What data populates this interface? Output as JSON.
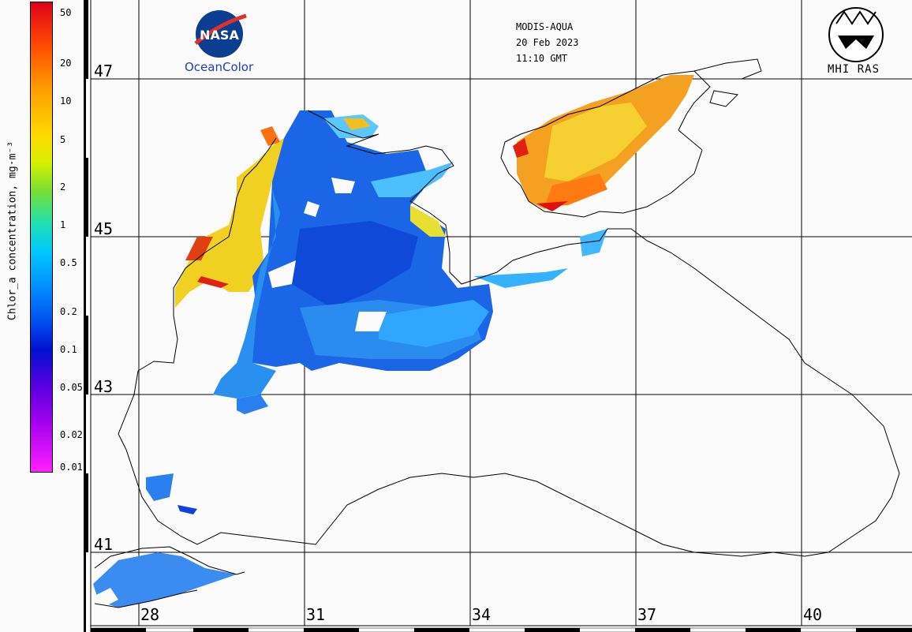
{
  "colorbar": {
    "title": "Chlor_a concentration, mg·m⁻³",
    "labels": [
      "50",
      "20",
      "10",
      "5",
      "2",
      "1",
      "0.5",
      "0.2",
      "0.1",
      "0.05",
      "0.02",
      "0.01"
    ]
  },
  "grid": {
    "latitudes": [
      "47",
      "45",
      "43",
      "41"
    ],
    "longitudes": [
      "28",
      "31",
      "34",
      "37",
      "40"
    ]
  },
  "header": {
    "sensor": "MODIS-AQUA",
    "date": "20 Feb 2023",
    "time": "11:10 GMT"
  },
  "logos": {
    "nasa_caption": "OceanColor",
    "nasa_text": "NASA",
    "mhi_caption": "MHI RAS"
  }
}
